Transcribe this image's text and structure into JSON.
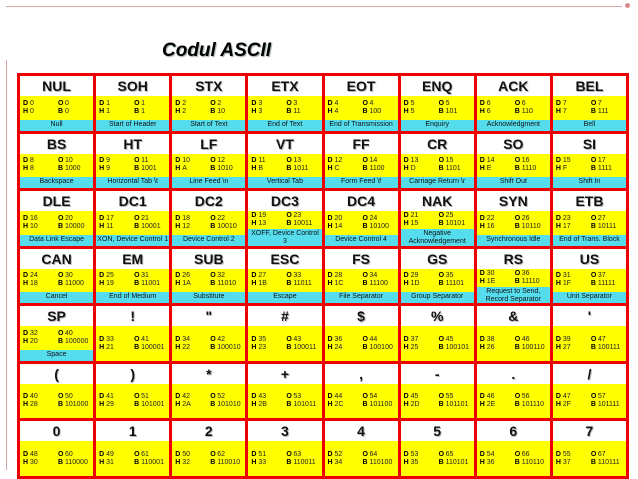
{
  "title": "Codul ASCII",
  "cells": [
    {
      "sym": "NUL",
      "d": "0",
      "o": "0",
      "h": "0",
      "b": "0",
      "desc": "Null"
    },
    {
      "sym": "SOH",
      "d": "1",
      "o": "1",
      "h": "1",
      "b": "1",
      "desc": "Start of Header"
    },
    {
      "sym": "STX",
      "d": "2",
      "o": "2",
      "h": "2",
      "b": "10",
      "desc": "Start of Text"
    },
    {
      "sym": "ETX",
      "d": "3",
      "o": "3",
      "h": "3",
      "b": "11",
      "desc": "End of Text"
    },
    {
      "sym": "EOT",
      "d": "4",
      "o": "4",
      "h": "4",
      "b": "100",
      "desc": "End of Transmission"
    },
    {
      "sym": "ENQ",
      "d": "5",
      "o": "5",
      "h": "5",
      "b": "101",
      "desc": "Enquiry"
    },
    {
      "sym": "ACK",
      "d": "6",
      "o": "6",
      "h": "6",
      "b": "110",
      "desc": "Acknowledgment"
    },
    {
      "sym": "BEL",
      "d": "7",
      "o": "7",
      "h": "7",
      "b": "111",
      "desc": "Bell"
    },
    {
      "sym": "BS",
      "d": "8",
      "o": "10",
      "h": "8",
      "b": "1000",
      "desc": "Backspace"
    },
    {
      "sym": "HT",
      "d": "9",
      "o": "11",
      "h": "9",
      "b": "1001",
      "desc": "Horizontal Tab \\t"
    },
    {
      "sym": "LF",
      "d": "10",
      "o": "12",
      "h": "A",
      "b": "1010",
      "desc": "Line Feed \\n"
    },
    {
      "sym": "VT",
      "d": "11",
      "o": "13",
      "h": "B",
      "b": "1011",
      "desc": "Vertical Tab"
    },
    {
      "sym": "FF",
      "d": "12",
      "o": "14",
      "h": "C",
      "b": "1100",
      "desc": "Form Feed \\f"
    },
    {
      "sym": "CR",
      "d": "13",
      "o": "15",
      "h": "D",
      "b": "1101",
      "desc": "Carriage Return \\r"
    },
    {
      "sym": "SO",
      "d": "14",
      "o": "16",
      "h": "E",
      "b": "1110",
      "desc": "Shift Out"
    },
    {
      "sym": "SI",
      "d": "15",
      "o": "17",
      "h": "F",
      "b": "1111",
      "desc": "Shift In"
    },
    {
      "sym": "DLE",
      "d": "16",
      "o": "20",
      "h": "10",
      "b": "10000",
      "desc": "Data Link Escape"
    },
    {
      "sym": "DC1",
      "d": "17",
      "o": "21",
      "h": "11",
      "b": "10001",
      "desc": "XON, Device Control 1"
    },
    {
      "sym": "DC2",
      "d": "18",
      "o": "22",
      "h": "12",
      "b": "10010",
      "desc": "Device Control 2"
    },
    {
      "sym": "DC3",
      "d": "19",
      "o": "23",
      "h": "13",
      "b": "10011",
      "desc": "XOFF, Device Control 3"
    },
    {
      "sym": "DC4",
      "d": "20",
      "o": "24",
      "h": "14",
      "b": "10100",
      "desc": "Device Control 4"
    },
    {
      "sym": "NAK",
      "d": "21",
      "o": "25",
      "h": "15",
      "b": "10101",
      "desc": "Negative Acknowledgement"
    },
    {
      "sym": "SYN",
      "d": "22",
      "o": "26",
      "h": "16",
      "b": "10110",
      "desc": "Synchronous Idle"
    },
    {
      "sym": "ETB",
      "d": "23",
      "o": "27",
      "h": "17",
      "b": "10111",
      "desc": "End of Trans. Block"
    },
    {
      "sym": "CAN",
      "d": "24",
      "o": "30",
      "h": "18",
      "b": "11000",
      "desc": "Cancel"
    },
    {
      "sym": "EM",
      "d": "25",
      "o": "31",
      "h": "19",
      "b": "11001",
      "desc": "End of Medium"
    },
    {
      "sym": "SUB",
      "d": "26",
      "o": "32",
      "h": "1A",
      "b": "11010",
      "desc": "Substitute"
    },
    {
      "sym": "ESC",
      "d": "27",
      "o": "33",
      "h": "1B",
      "b": "11011",
      "desc": "Escape"
    },
    {
      "sym": "FS",
      "d": "28",
      "o": "34",
      "h": "1C",
      "b": "11100",
      "desc": "File Separator"
    },
    {
      "sym": "GS",
      "d": "29",
      "o": "35",
      "h": "1D",
      "b": "11101",
      "desc": "Group Separator"
    },
    {
      "sym": "RS",
      "d": "30",
      "o": "36",
      "h": "1E",
      "b": "11110",
      "desc": "Request to Send, Record Separator"
    },
    {
      "sym": "US",
      "d": "31",
      "o": "37",
      "h": "1F",
      "b": "11111",
      "desc": "Unit Separator"
    },
    {
      "sym": "SP",
      "d": "32",
      "o": "40",
      "h": "20",
      "b": "100000",
      "desc": "Space"
    },
    {
      "sym": "!",
      "d": "33",
      "o": "41",
      "h": "21",
      "b": "100001",
      "desc": ""
    },
    {
      "sym": "\"",
      "d": "34",
      "o": "42",
      "h": "22",
      "b": "100010",
      "desc": ""
    },
    {
      "sym": "#",
      "d": "35",
      "o": "43",
      "h": "23",
      "b": "100011",
      "desc": ""
    },
    {
      "sym": "$",
      "d": "36",
      "o": "44",
      "h": "24",
      "b": "100100",
      "desc": ""
    },
    {
      "sym": "%",
      "d": "37",
      "o": "45",
      "h": "25",
      "b": "100101",
      "desc": ""
    },
    {
      "sym": "&",
      "d": "38",
      "o": "46",
      "h": "26",
      "b": "100110",
      "desc": ""
    },
    {
      "sym": "'",
      "d": "39",
      "o": "47",
      "h": "27",
      "b": "100111",
      "desc": ""
    },
    {
      "sym": "(",
      "d": "40",
      "o": "50",
      "h": "28",
      "b": "101000",
      "desc": ""
    },
    {
      "sym": ")",
      "d": "41",
      "o": "51",
      "h": "29",
      "b": "101001",
      "desc": ""
    },
    {
      "sym": "*",
      "d": "42",
      "o": "52",
      "h": "2A",
      "b": "101010",
      "desc": ""
    },
    {
      "sym": "+",
      "d": "43",
      "o": "53",
      "h": "2B",
      "b": "101011",
      "desc": ""
    },
    {
      "sym": ",",
      "d": "44",
      "o": "54",
      "h": "2C",
      "b": "101100",
      "desc": ""
    },
    {
      "sym": "-",
      "d": "45",
      "o": "55",
      "h": "2D",
      "b": "101101",
      "desc": ""
    },
    {
      "sym": ".",
      "d": "46",
      "o": "56",
      "h": "2E",
      "b": "101110",
      "desc": ""
    },
    {
      "sym": "/",
      "d": "47",
      "o": "57",
      "h": "2F",
      "b": "101111",
      "desc": ""
    },
    {
      "sym": "0",
      "d": "48",
      "o": "60",
      "h": "30",
      "b": "110000",
      "desc": ""
    },
    {
      "sym": "1",
      "d": "49",
      "o": "61",
      "h": "31",
      "b": "110001",
      "desc": ""
    },
    {
      "sym": "2",
      "d": "50",
      "o": "62",
      "h": "32",
      "b": "110010",
      "desc": ""
    },
    {
      "sym": "3",
      "d": "51",
      "o": "63",
      "h": "33",
      "b": "110011",
      "desc": ""
    },
    {
      "sym": "4",
      "d": "52",
      "o": "64",
      "h": "34",
      "b": "110100",
      "desc": ""
    },
    {
      "sym": "5",
      "d": "53",
      "o": "65",
      "h": "35",
      "b": "110101",
      "desc": ""
    },
    {
      "sym": "6",
      "d": "54",
      "o": "66",
      "h": "36",
      "b": "110110",
      "desc": ""
    },
    {
      "sym": "7",
      "d": "55",
      "o": "67",
      "h": "37",
      "b": "110111",
      "desc": ""
    }
  ]
}
